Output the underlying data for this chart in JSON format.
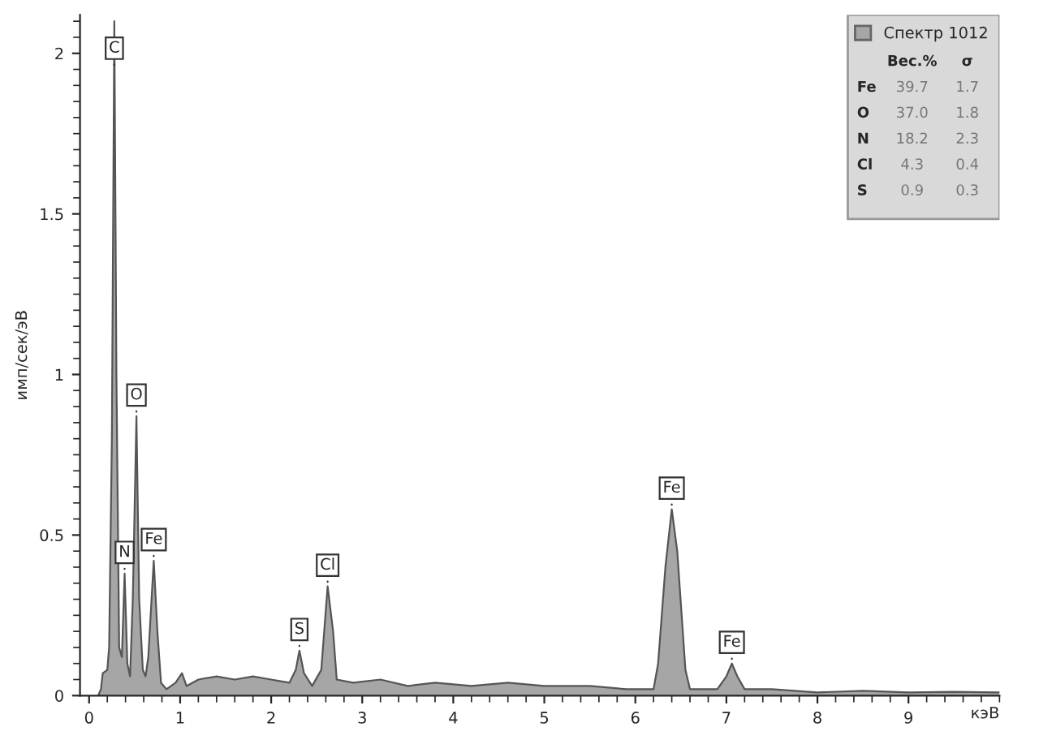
{
  "chart_data": {
    "type": "area",
    "xlabel": "кэВ",
    "ylabel": "имп/сек/эВ",
    "x": [
      0.1,
      0.13,
      0.15,
      0.2,
      0.22,
      0.25,
      0.277,
      0.3,
      0.33,
      0.36,
      0.39,
      0.42,
      0.45,
      0.48,
      0.52,
      0.55,
      0.59,
      0.62,
      0.65,
      0.71,
      0.75,
      0.79,
      0.85,
      0.95,
      1.02,
      1.07,
      1.2,
      1.4,
      1.6,
      1.8,
      2.0,
      2.2,
      2.27,
      2.31,
      2.36,
      2.45,
      2.55,
      2.62,
      2.68,
      2.72,
      2.9,
      3.2,
      3.5,
      3.8,
      4.2,
      4.6,
      5.0,
      5.5,
      5.9,
      6.2,
      6.25,
      6.33,
      6.4,
      6.46,
      6.55,
      6.6,
      6.9,
      7.0,
      7.06,
      7.12,
      7.2,
      7.5,
      8.0,
      8.5,
      9.0,
      9.5,
      10.0
    ],
    "series": [
      {
        "name": "Спектр 1012",
        "color": "#a6a6a6",
        "values": [
          0,
          0.02,
          0.07,
          0.08,
          0.15,
          0.8,
          2.1,
          1.0,
          0.15,
          0.12,
          0.38,
          0.1,
          0.06,
          0.3,
          0.87,
          0.3,
          0.08,
          0.06,
          0.12,
          0.42,
          0.2,
          0.04,
          0.02,
          0.04,
          0.07,
          0.03,
          0.05,
          0.06,
          0.05,
          0.06,
          0.05,
          0.04,
          0.08,
          0.14,
          0.07,
          0.03,
          0.08,
          0.34,
          0.2,
          0.05,
          0.04,
          0.05,
          0.03,
          0.04,
          0.03,
          0.04,
          0.03,
          0.03,
          0.02,
          0.02,
          0.1,
          0.4,
          0.58,
          0.45,
          0.08,
          0.02,
          0.02,
          0.06,
          0.1,
          0.06,
          0.02,
          0.02,
          0.01,
          0.015,
          0.01,
          0.012,
          0.01
        ]
      }
    ],
    "xlim": [
      -0.1,
      10.0
    ],
    "ylim": [
      0,
      2.12
    ],
    "xticks": [
      0,
      1,
      2,
      3,
      4,
      5,
      6,
      7,
      8,
      9
    ],
    "yticks": [
      0,
      0.5,
      1,
      1.5,
      2
    ],
    "grid": false,
    "legend": "top right",
    "annotations": [
      {
        "text": "C",
        "x": 0.277,
        "y": 1.95
      },
      {
        "text": "N",
        "x": 0.39,
        "y": 0.38
      },
      {
        "text": "O",
        "x": 0.52,
        "y": 0.87
      },
      {
        "text": "Fe",
        "x": 0.71,
        "y": 0.42
      },
      {
        "text": "S",
        "x": 2.31,
        "y": 0.14
      },
      {
        "text": "Cl",
        "x": 2.62,
        "y": 0.34
      },
      {
        "text": "Fe",
        "x": 6.4,
        "y": 0.58
      },
      {
        "text": "Fe",
        "x": 7.06,
        "y": 0.1
      },
      "Вес.%",
      "σ",
      "Fe",
      "39.7",
      "1.7",
      "O",
      "37.0",
      "1.8",
      "N",
      "18.2",
      "2.3",
      "Cl",
      "4.3",
      "0.4",
      "S",
      "0.9",
      "0.3"
    ]
  }
}
